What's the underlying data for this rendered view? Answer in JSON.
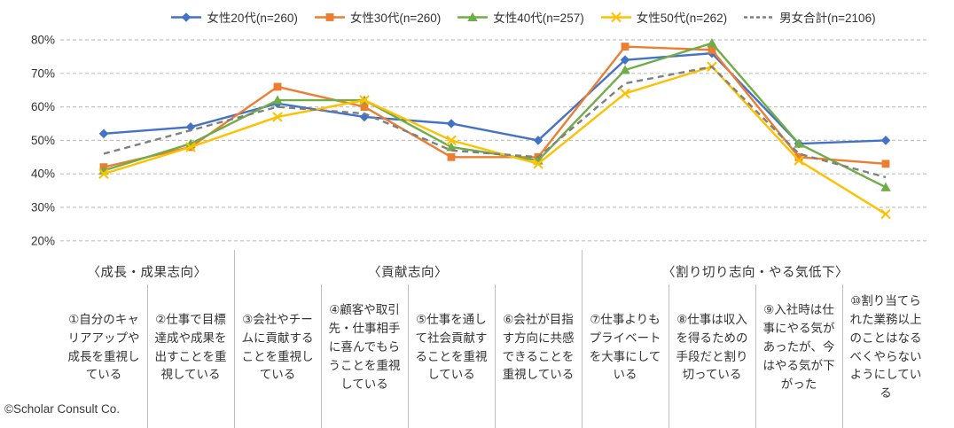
{
  "footer": {
    "copyright": "©Scholar Consult Co."
  },
  "chart_data": {
    "type": "line",
    "title": "",
    "legend_position": "top",
    "grid": "horizontal-dashed",
    "y_axis": {
      "min": 20,
      "max": 80,
      "step": 10,
      "ticks": [
        "80%",
        "70%",
        "60%",
        "50%",
        "40%",
        "30%",
        "20%"
      ]
    },
    "groups": [
      {
        "label": "〈成長・成果志向〉",
        "span": 2
      },
      {
        "label": "〈貢献志向〉",
        "span": 4
      },
      {
        "label": "〈割り切り志向・やる気低下〉",
        "span": 4
      }
    ],
    "categories": [
      "①自分のキャリアアップや成長を重視している",
      "②仕事で目標達成や成果を出すことを重視している",
      "③会社やチームに貢献することを重視している",
      "④顧客や取引先・仕事相手に喜んでもらうことを重視している",
      "⑤仕事を通して社会貢献することを重視している",
      "⑥会社が目指す方向に共感できることを重視している",
      "⑦仕事よりもプライベートを大事にしている",
      "⑧仕事は収入を得るための手段だと割り切っている",
      "⑨入社時は仕事にやる気があったが、今はやる気が下がった",
      "⑩割り当てられた業務以上のことはなるべくやらないようにしている"
    ],
    "series": [
      {
        "name": "女性20代(n=260)",
        "color": "#4472C4",
        "marker": "diamond",
        "dash": "solid",
        "values": [
          52,
          54,
          61,
          57,
          55,
          50,
          74,
          76,
          49,
          50
        ]
      },
      {
        "name": "女性30代(n=260)",
        "color": "#ED7D31",
        "marker": "square",
        "dash": "solid",
        "values": [
          42,
          48,
          66,
          60,
          45,
          45,
          78,
          77,
          45,
          43
        ]
      },
      {
        "name": "女性40代(n=257)",
        "color": "#70AD47",
        "marker": "triangle",
        "dash": "solid",
        "values": [
          41,
          49,
          62,
          62,
          48,
          44,
          71,
          79,
          49,
          36
        ]
      },
      {
        "name": "女性50代(n=262)",
        "color": "#FFC000",
        "marker": "x",
        "dash": "solid",
        "values": [
          40,
          48,
          57,
          62,
          50,
          43,
          64,
          72,
          44,
          28
        ]
      },
      {
        "name": "男女合計(n=2106)",
        "color": "#7F7F7F",
        "marker": "none",
        "dash": "dashed",
        "values": [
          46,
          53,
          60,
          58,
          47,
          45,
          67,
          72,
          46,
          39
        ]
      }
    ],
    "colors": {
      "gridline": "#C3C3C3",
      "divider": "#BFBFBF",
      "axis_text": "#333333"
    }
  }
}
